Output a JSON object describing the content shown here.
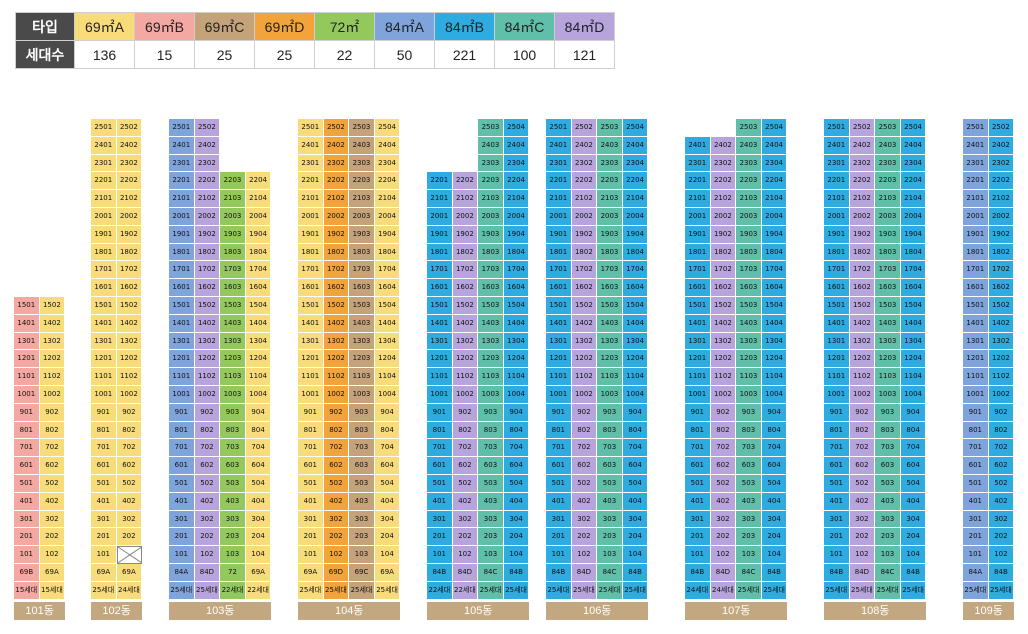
{
  "legend": {
    "type_header": "타입",
    "count_header": "세대수",
    "types": [
      {
        "name": "69㎡A",
        "count": "136",
        "color": "#f8dc7a"
      },
      {
        "name": "69㎡B",
        "count": "15",
        "color": "#f4a8a2"
      },
      {
        "name": "69㎡C",
        "count": "25",
        "color": "#c4a27a"
      },
      {
        "name": "69㎡D",
        "count": "25",
        "color": "#f2a33a"
      },
      {
        "name": "72㎡",
        "count": "22",
        "color": "#93c95c"
      },
      {
        "name": "84㎡A",
        "count": "50",
        "color": "#7fa4dc"
      },
      {
        "name": "84㎡B",
        "count": "221",
        "color": "#2eabe0"
      },
      {
        "name": "84㎡C",
        "count": "100",
        "color": "#5fbfa8"
      },
      {
        "name": "84㎡D",
        "count": "121",
        "color": "#b7a4dc"
      }
    ]
  },
  "buildings": [
    {
      "name": "101동",
      "top_floor": 15,
      "columns": [
        {
          "line": "01",
          "type_label": "69B",
          "type": "69㎡B",
          "count_label": "15세대",
          "floors": [
            1,
            15
          ]
        },
        {
          "line": "02",
          "type_label": "69A",
          "type": "69㎡A",
          "count_label": "15세대",
          "floors": [
            1,
            15
          ]
        }
      ]
    },
    {
      "name": "102동",
      "top_floor": 25,
      "columns": [
        {
          "line": "01",
          "type_label": "69A",
          "type": "69㎡A",
          "count_label": "25세대",
          "floors": [
            1,
            25
          ]
        },
        {
          "line": "02",
          "type_label": "69A",
          "type": "69㎡A",
          "count_label": "24세대",
          "floors": [
            2,
            25
          ]
        }
      ]
    },
    {
      "name": "103동",
      "top_floor": 25,
      "columns": [
        {
          "line": "01",
          "type_label": "84A",
          "type": "84㎡A",
          "count_label": "25세대",
          "floors": [
            1,
            25
          ]
        },
        {
          "line": "02",
          "type_label": "84D",
          "type": "84㎡D",
          "count_label": "25세대",
          "floors": [
            1,
            25
          ]
        },
        {
          "line": "03",
          "type_label": "72",
          "type": "72㎡",
          "count_label": "22세대",
          "floors": [
            1,
            22
          ]
        },
        {
          "line": "04",
          "type_label": "69A",
          "type": "69㎡A",
          "count_label": "22세대",
          "floors": [
            1,
            22
          ]
        }
      ]
    },
    {
      "name": "104동",
      "top_floor": 25,
      "columns": [
        {
          "line": "01",
          "type_label": "69A",
          "type": "69㎡A",
          "count_label": "25세대",
          "floors": [
            1,
            25
          ]
        },
        {
          "line": "02",
          "type_label": "69D",
          "type": "69㎡D",
          "count_label": "25세대",
          "floors": [
            1,
            25
          ]
        },
        {
          "line": "03",
          "type_label": "69C",
          "type": "69㎡C",
          "count_label": "25세대",
          "floors": [
            1,
            25
          ]
        },
        {
          "line": "04",
          "type_label": "69A",
          "type": "69㎡A",
          "count_label": "25세대",
          "floors": [
            1,
            25
          ]
        }
      ]
    },
    {
      "name": "105동",
      "top_floor": 25,
      "columns": [
        {
          "line": "01",
          "type_label": "84B",
          "type": "84㎡B",
          "count_label": "22세대",
          "floors": [
            1,
            22
          ]
        },
        {
          "line": "02",
          "type_label": "84D",
          "type": "84㎡D",
          "count_label": "22세대",
          "floors": [
            1,
            22
          ]
        },
        {
          "line": "03",
          "type_label": "84C",
          "type": "84㎡C",
          "count_label": "25세대",
          "floors": [
            1,
            25
          ]
        },
        {
          "line": "04",
          "type_label": "84B",
          "type": "84㎡B",
          "count_label": "25세대",
          "floors": [
            1,
            25
          ]
        }
      ]
    },
    {
      "name": "106동",
      "top_floor": 25,
      "columns": [
        {
          "line": "01",
          "type_label": "84B",
          "type": "84㎡B",
          "count_label": "25세대",
          "floors": [
            1,
            25
          ]
        },
        {
          "line": "02",
          "type_label": "84D",
          "type": "84㎡D",
          "count_label": "25세대",
          "floors": [
            1,
            25
          ]
        },
        {
          "line": "03",
          "type_label": "84C",
          "type": "84㎡C",
          "count_label": "25세대",
          "floors": [
            1,
            25
          ]
        },
        {
          "line": "04",
          "type_label": "84B",
          "type": "84㎡B",
          "count_label": "25세대",
          "floors": [
            1,
            25
          ]
        }
      ]
    },
    {
      "name": "107동",
      "top_floor": 25,
      "columns": [
        {
          "line": "01",
          "type_label": "84B",
          "type": "84㎡B",
          "count_label": "24세대",
          "floors": [
            1,
            24
          ]
        },
        {
          "line": "02",
          "type_label": "84D",
          "type": "84㎡D",
          "count_label": "24세대",
          "floors": [
            1,
            24
          ]
        },
        {
          "line": "03",
          "type_label": "84C",
          "type": "84㎡C",
          "count_label": "25세대",
          "floors": [
            1,
            25
          ]
        },
        {
          "line": "04",
          "type_label": "84B",
          "type": "84㎡B",
          "count_label": "25세대",
          "floors": [
            1,
            25
          ]
        }
      ]
    },
    {
      "name": "108동",
      "top_floor": 25,
      "columns": [
        {
          "line": "01",
          "type_label": "84B",
          "type": "84㎡B",
          "count_label": "25세대",
          "floors": [
            1,
            25
          ]
        },
        {
          "line": "02",
          "type_label": "84D",
          "type": "84㎡D",
          "count_label": "25세대",
          "floors": [
            1,
            25
          ]
        },
        {
          "line": "03",
          "type_label": "84C",
          "type": "84㎡C",
          "count_label": "25세대",
          "floors": [
            1,
            25
          ]
        },
        {
          "line": "04",
          "type_label": "84B",
          "type": "84㎡B",
          "count_label": "25세대",
          "floors": [
            1,
            25
          ]
        }
      ]
    },
    {
      "name": "109동",
      "top_floor": 25,
      "columns": [
        {
          "line": "01",
          "type_label": "84A",
          "type": "84㎡A",
          "count_label": "25세대",
          "floors": [
            1,
            25
          ]
        },
        {
          "line": "02",
          "type_label": "84B",
          "type": "84㎡B",
          "count_label": "25세대",
          "floors": [
            1,
            25
          ]
        }
      ]
    }
  ]
}
